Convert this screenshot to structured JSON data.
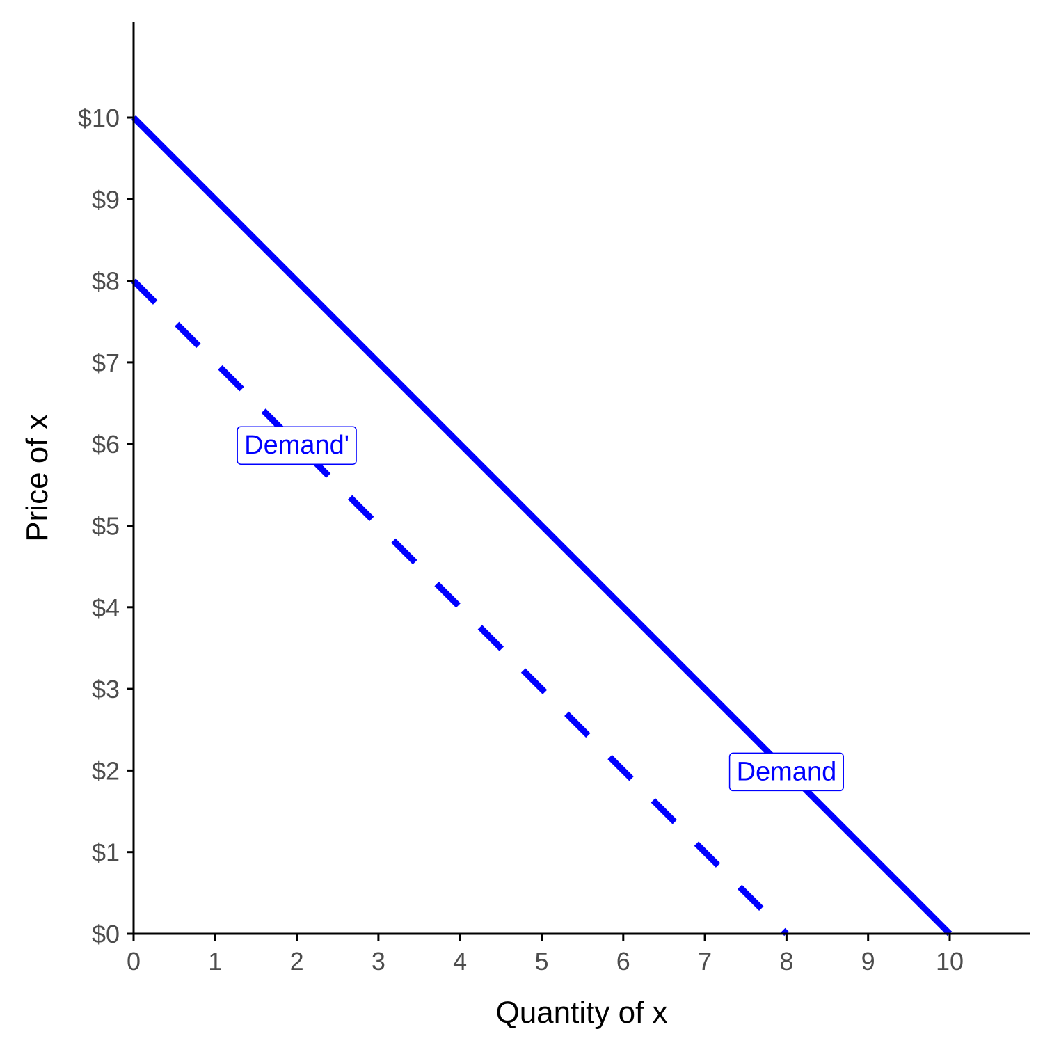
{
  "chart_data": {
    "type": "line",
    "title": "",
    "xlabel": "Quantity of x",
    "ylabel": "Price of x",
    "xlim": [
      0,
      11
    ],
    "ylim": [
      0,
      11
    ],
    "grid": false,
    "x_ticks": [
      0,
      1,
      2,
      3,
      4,
      5,
      6,
      7,
      8,
      9,
      10
    ],
    "x_tick_labels": [
      "0",
      "1",
      "2",
      "3",
      "4",
      "5",
      "6",
      "7",
      "8",
      "9",
      "10"
    ],
    "y_ticks": [
      0,
      1,
      2,
      3,
      4,
      5,
      6,
      7,
      8,
      9,
      10
    ],
    "y_tick_labels": [
      "$0",
      "$1",
      "$2",
      "$3",
      "$4",
      "$5",
      "$6",
      "$7",
      "$8",
      "$9",
      "$10"
    ],
    "series": [
      {
        "label": "Demand",
        "style": "solid",
        "color": "#0000ff",
        "points": [
          {
            "x": 0,
            "y": 10
          },
          {
            "x": 10,
            "y": 0
          }
        ],
        "label_at": {
          "x": 8,
          "y": 2
        }
      },
      {
        "label": "Demand'",
        "style": "dashed",
        "color": "#0000ff",
        "points": [
          {
            "x": 0,
            "y": 8
          },
          {
            "x": 8,
            "y": 0
          }
        ],
        "label_at": {
          "x": 2,
          "y": 6
        }
      }
    ]
  }
}
